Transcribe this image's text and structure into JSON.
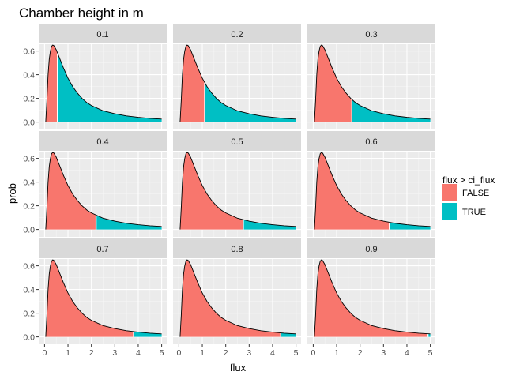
{
  "chart_data": {
    "type": "area",
    "title": "Chamber height in m",
    "xlabel": "flux",
    "ylabel": "prob",
    "xlim": [
      0,
      5
    ],
    "ylim": [
      0,
      0.7
    ],
    "x_ticks": [
      "0",
      "1",
      "2",
      "3",
      "4",
      "5"
    ],
    "y_ticks": [
      "0.0",
      "0.2",
      "0.4",
      "0.6"
    ],
    "y_tick_values": [
      0,
      0.2,
      0.4,
      0.6
    ],
    "grid": true,
    "legend": {
      "title": "flux > ci_flux",
      "position": "right",
      "entries": [
        {
          "label": "FALSE",
          "color": "#F8766D"
        },
        {
          "label": "TRUE",
          "color": "#00BFC4"
        }
      ]
    },
    "curve": {
      "x": [
        0.05,
        0.1,
        0.15,
        0.2,
        0.25,
        0.3,
        0.35,
        0.4,
        0.5,
        0.6,
        0.7,
        0.8,
        0.9,
        1.0,
        1.2,
        1.4,
        1.6,
        1.8,
        2.0,
        2.5,
        3.0,
        3.5,
        4.0,
        4.5,
        5.0
      ],
      "prob": [
        0.0,
        0.18,
        0.4,
        0.53,
        0.6,
        0.64,
        0.65,
        0.645,
        0.61,
        0.56,
        0.51,
        0.46,
        0.415,
        0.37,
        0.3,
        0.245,
        0.2,
        0.165,
        0.14,
        0.095,
        0.07,
        0.052,
        0.04,
        0.031,
        0.025
      ]
    },
    "panels": [
      {
        "label": "0.1",
        "ci_flux": 0.55
      },
      {
        "label": "0.2",
        "ci_flux": 1.1
      },
      {
        "label": "0.3",
        "ci_flux": 1.65
      },
      {
        "label": "0.4",
        "ci_flux": 2.2
      },
      {
        "label": "0.5",
        "ci_flux": 2.75
      },
      {
        "label": "0.6",
        "ci_flux": 3.25
      },
      {
        "label": "0.7",
        "ci_flux": 3.8
      },
      {
        "label": "0.8",
        "ci_flux": 4.35
      },
      {
        "label": "0.9",
        "ci_flux": 4.9
      }
    ]
  }
}
